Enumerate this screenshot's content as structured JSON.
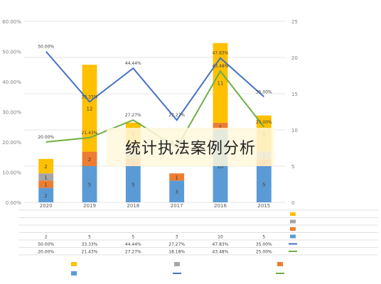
{
  "overlay_caption": "统计执法案例分析",
  "colors": {
    "bar_blue": "#5b9bd5",
    "bar_orange": "#ed7d31",
    "bar_gray": "#a5a5a5",
    "bar_yellow": "#ffc000",
    "line_blue": "#4472c4",
    "line_green": "#70ad47",
    "grid": "#e4e4e4",
    "axis_text": "#7f7f7f",
    "banner_bg": "#fff8dc"
  },
  "chart_data": {
    "type": "bar",
    "mirrored": true,
    "title": "",
    "categories": [
      "2015",
      "2016",
      "2017",
      "2018",
      "2019",
      "2020"
    ],
    "stacked": true,
    "bar_series": [
      {
        "name": "",
        "values": [
          5,
          10,
          3,
          5,
          5,
          2
        ]
      },
      {
        "name": "",
        "values": [
          1,
          1,
          1,
          1,
          2,
          1
        ]
      },
      {
        "name": "",
        "values": [
          1,
          0,
          0,
          2,
          0,
          1
        ]
      },
      {
        "name": "",
        "values": [
          5,
          11,
          0,
          3,
          12,
          2
        ]
      }
    ],
    "line_series": [
      {
        "name": "",
        "axis": "left",
        "values": [
          35.0,
          47.83,
          27.27,
          44.44,
          33.33,
          50.0
        ],
        "labels": [
          "35.00%",
          "47.83%",
          "27.27%",
          "44.44%",
          "33.33%",
          "50.00%"
        ]
      },
      {
        "name": "",
        "axis": "left",
        "values": [
          25.0,
          43.48,
          18.18,
          27.27,
          21.43,
          20.0
        ],
        "labels": [
          "25.00%",
          "43.48%",
          "18.18%",
          "27.27%",
          "21.43%",
          "20.00%"
        ]
      }
    ],
    "left_axis": {
      "min": 0,
      "max": 60,
      "ticks": [
        "0.00%",
        "10.00%",
        "20.00%",
        "30.00%",
        "40.00%",
        "50.00%",
        "60.00%"
      ]
    },
    "right_axis": {
      "min": 0,
      "max": 25,
      "ticks": [
        "0",
        "5",
        "10",
        "15",
        "20",
        "25"
      ]
    },
    "grid": true,
    "table": {
      "rows": [
        {
          "label": "",
          "cells": [
            "",
            "",
            "",
            "",
            "",
            ""
          ]
        },
        {
          "label": "",
          "cells": [
            "",
            "",
            "",
            "",
            "",
            ""
          ]
        },
        {
          "label": "",
          "cells": [
            "",
            "",
            "",
            "",
            "",
            ""
          ]
        },
        {
          "label": "",
          "cells": [
            "5",
            "10",
            "3",
            "5",
            "5",
            "2"
          ]
        },
        {
          "label": "",
          "cells": [
            "35.00%",
            "47.83%",
            "27.27%",
            "44.44%",
            "33.33%",
            "50.00%"
          ]
        },
        {
          "label": "",
          "cells": [
            "25.00%",
            "43.48%",
            "18.18%",
            "27.27%",
            "21.43%",
            "20.00%"
          ]
        }
      ]
    },
    "legend": [
      {
        "name": "",
        "kind": "swatch",
        "color": "#ffc000"
      },
      {
        "name": "",
        "kind": "swatch",
        "color": "#a5a5a5"
      },
      {
        "name": "",
        "kind": "swatch",
        "color": "#ed7d31"
      },
      {
        "name": "",
        "kind": "swatch",
        "color": "#5b9bd5"
      },
      {
        "name": "",
        "kind": "line",
        "color": "#4472c4"
      },
      {
        "name": "",
        "kind": "line",
        "color": "#70ad47"
      }
    ]
  }
}
